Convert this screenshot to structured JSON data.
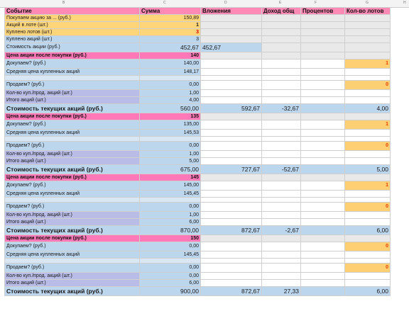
{
  "columns": [
    "B",
    "C",
    "D",
    "E",
    "F",
    "G",
    "H"
  ],
  "headers": [
    "Событие",
    "Сумма",
    "Вложения",
    "Доход общ",
    "Процентов",
    "Кол-во лотов"
  ],
  "top": {
    "r1": {
      "label": "Покупаем акцию за ... (руб.)",
      "value": "150,89"
    },
    "r2": {
      "label": "Акций в лоте (шт.)",
      "value": "1"
    },
    "r3": {
      "label": "Куплено лотов (шт.)",
      "value": "3"
    },
    "r4": {
      "label": "Куплено акций (шт.)",
      "value": "3"
    },
    "r5": {
      "label": "Стоимость акции (руб.)",
      "value": "452,67",
      "invest": "452,67"
    }
  },
  "blocks": [
    {
      "price_label": "Цена акции после покупки (руб.)",
      "price": "140",
      "buy_label": "Докупаем? (руб.)",
      "buy_sum": "140,00",
      "buy_flag": "1",
      "avg_label": "Средняя цена купленных акций",
      "avg": "148,17",
      "sell_label": "Продаем? (руб.)",
      "sell_sum": "0,00",
      "sell_flag": "0",
      "qty_label": "Кол-во куп./прод. акций (шт.)",
      "qty": "1,00",
      "total_label": "Итого акций (шт.)",
      "total": "4,00",
      "value_label": "Стоимость текущих акций (руб.)",
      "value": "560,00",
      "invest": "592,67",
      "income": "-32,67",
      "percent": "",
      "lots": "4,00"
    },
    {
      "price_label": "Цена акции после покупки (руб.)",
      "price": "135",
      "buy_label": "Докупаем? (руб.)",
      "buy_sum": "135,00",
      "buy_flag": "1",
      "avg_label": "Средняя цена купленных акций",
      "avg": "145,53",
      "sell_label": "Продаем? (руб.)",
      "sell_sum": "0,00",
      "sell_flag": "0",
      "qty_label": "Кол-во куп./прод. акций (шт.)",
      "qty": "1,00",
      "total_label": "Итого акций (шт.)",
      "total": "5,00",
      "value_label": "Стоимость текущих акций (руб.)",
      "value": "675,00",
      "invest": "727,67",
      "income": "-52,67",
      "percent": "",
      "lots": "5,00"
    },
    {
      "price_label": "Цена акции после покупки (руб.)",
      "price": "145",
      "buy_label": "Докупаем? (руб.)",
      "buy_sum": "145,00",
      "buy_flag": "1",
      "avg_label": "Средняя цена купленных акций",
      "avg": "145,45",
      "sell_label": "Продаем? (руб.)",
      "sell_sum": "0,00",
      "sell_flag": "0",
      "qty_label": "Кол-во куп./прод. акций (шт.)",
      "qty": "1,00",
      "total_label": "Итого акций (шт.)",
      "total": "6,00",
      "value_label": "Стоимость текущих акций (руб.)",
      "value": "870,00",
      "invest": "872,67",
      "income": "-2,67",
      "percent": "",
      "lots": "6,00"
    },
    {
      "price_label": "Цена акции после покупки (руб.)",
      "price": "150",
      "buy_label": "Докупаем? (руб.)",
      "buy_sum": "0,00",
      "buy_flag": "0",
      "avg_label": "Средняя цена купленных акций",
      "avg": "145,45",
      "sell_label": "Продаем? (руб.)",
      "sell_sum": "0,00",
      "sell_flag": "0",
      "qty_label": "Кол-во куп./прод. акций (шт.)",
      "qty": "0,00",
      "total_label": "Итого акций (шт.)",
      "total": "6,00",
      "value_label": "Стоимость текущих акций (руб.)",
      "value": "900,00",
      "invest": "872,67",
      "income": "27,33",
      "percent": "",
      "lots": "6,00"
    }
  ]
}
